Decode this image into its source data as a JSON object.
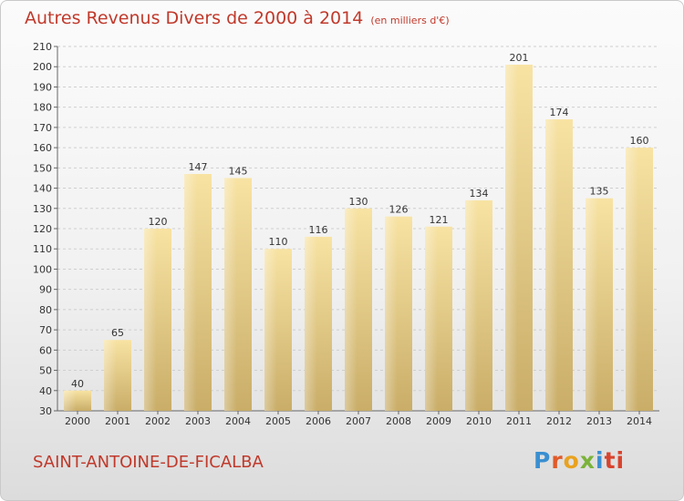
{
  "title": "Autres Revenus Divers de 2000 à 2014",
  "subtitle": "(en milliers d'€)",
  "commune": "SAINT-ANTOINE-DE-FICALBA",
  "logo_text": "Proxiti",
  "colors": {
    "bar_light": "#f8e3a3",
    "bar_dark": "#c9ad68",
    "title": "#c0392b",
    "grid": "#cfcfcf"
  },
  "chart_data": {
    "type": "bar",
    "categories": [
      "2000",
      "2001",
      "2002",
      "2003",
      "2004",
      "2005",
      "2006",
      "2007",
      "2008",
      "2009",
      "2010",
      "2011",
      "2012",
      "2013",
      "2014"
    ],
    "values": [
      40,
      65,
      120,
      147,
      145,
      110,
      116,
      130,
      126,
      121,
      134,
      201,
      174,
      135,
      160
    ],
    "title": "Autres Revenus Divers de 2000 à 2014",
    "subtitle": "(en milliers d'€)",
    "ylim": [
      30,
      210
    ],
    "yticks": [
      30,
      40,
      50,
      60,
      70,
      80,
      90,
      100,
      110,
      120,
      130,
      140,
      150,
      160,
      170,
      180,
      190,
      200,
      210
    ],
    "grid": true,
    "data_labels": true
  }
}
